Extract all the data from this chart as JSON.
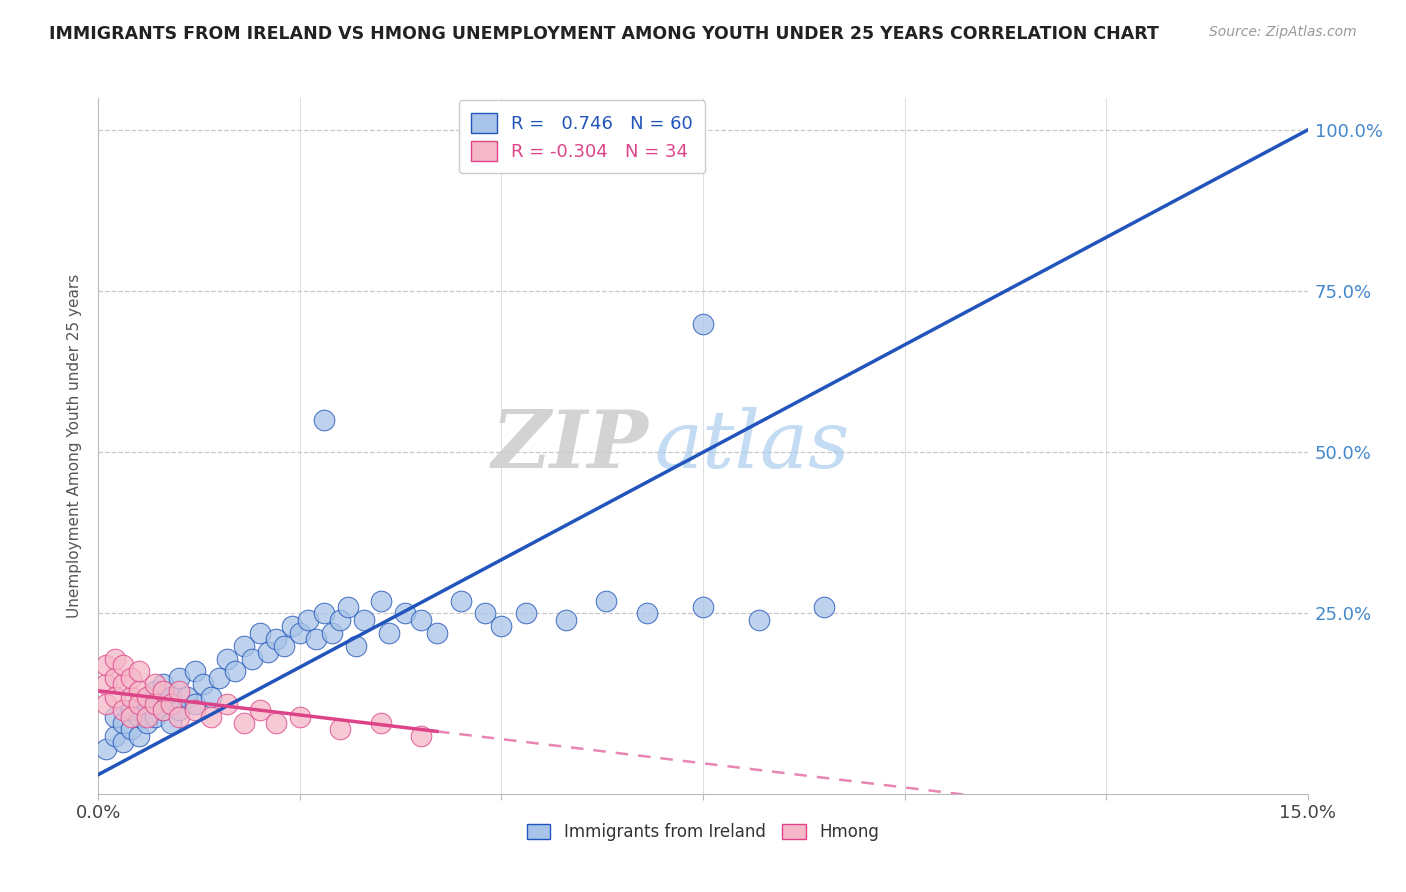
{
  "title": "IMMIGRANTS FROM IRELAND VS HMONG UNEMPLOYMENT AMONG YOUTH UNDER 25 YEARS CORRELATION CHART",
  "source": "Source: ZipAtlas.com",
  "ylabel": "Unemployment Among Youth under 25 years",
  "xlim": [
    0.0,
    0.15
  ],
  "ylim": [
    0.0,
    1.05
  ],
  "ireland_color": "#a8c4e8",
  "hmong_color": "#f5b8c8",
  "ireland_line_color": "#2255bb",
  "hmong_line_color": "#dd4488",
  "grid_color": "#c8c8c8",
  "right_tick_color": "#4488cc",
  "watermark_zip": "ZIP",
  "watermark_atlas": "atlas",
  "ireland_line_slope": 6.67,
  "ireland_line_intercept": 0.0,
  "hmong_line_slope": -1.5,
  "hmong_line_intercept": 0.13,
  "ireland_points": [
    [
      0.001,
      0.04
    ],
    [
      0.002,
      0.06
    ],
    [
      0.002,
      0.09
    ],
    [
      0.003,
      0.05
    ],
    [
      0.003,
      0.08
    ],
    [
      0.004,
      0.07
    ],
    [
      0.004,
      0.1
    ],
    [
      0.005,
      0.06
    ],
    [
      0.005,
      0.09
    ],
    [
      0.006,
      0.08
    ],
    [
      0.006,
      0.11
    ],
    [
      0.007,
      0.09
    ],
    [
      0.007,
      0.13
    ],
    [
      0.008,
      0.1
    ],
    [
      0.008,
      0.14
    ],
    [
      0.009,
      0.08
    ],
    [
      0.009,
      0.12
    ],
    [
      0.01,
      0.1
    ],
    [
      0.01,
      0.15
    ],
    [
      0.011,
      0.12
    ],
    [
      0.012,
      0.11
    ],
    [
      0.012,
      0.16
    ],
    [
      0.013,
      0.14
    ],
    [
      0.014,
      0.12
    ],
    [
      0.015,
      0.15
    ],
    [
      0.016,
      0.18
    ],
    [
      0.017,
      0.16
    ],
    [
      0.018,
      0.2
    ],
    [
      0.019,
      0.18
    ],
    [
      0.02,
      0.22
    ],
    [
      0.021,
      0.19
    ],
    [
      0.022,
      0.21
    ],
    [
      0.023,
      0.2
    ],
    [
      0.024,
      0.23
    ],
    [
      0.025,
      0.22
    ],
    [
      0.026,
      0.24
    ],
    [
      0.027,
      0.21
    ],
    [
      0.028,
      0.25
    ],
    [
      0.029,
      0.22
    ],
    [
      0.03,
      0.24
    ],
    [
      0.031,
      0.26
    ],
    [
      0.032,
      0.2
    ],
    [
      0.033,
      0.24
    ],
    [
      0.035,
      0.27
    ],
    [
      0.036,
      0.22
    ],
    [
      0.038,
      0.25
    ],
    [
      0.04,
      0.24
    ],
    [
      0.042,
      0.22
    ],
    [
      0.045,
      0.27
    ],
    [
      0.048,
      0.25
    ],
    [
      0.05,
      0.23
    ],
    [
      0.053,
      0.25
    ],
    [
      0.058,
      0.24
    ],
    [
      0.063,
      0.27
    ],
    [
      0.068,
      0.25
    ],
    [
      0.075,
      0.26
    ],
    [
      0.082,
      0.24
    ],
    [
      0.09,
      0.26
    ],
    [
      0.028,
      0.55
    ],
    [
      0.075,
      0.7
    ]
  ],
  "hmong_points": [
    [
      0.001,
      0.14
    ],
    [
      0.001,
      0.17
    ],
    [
      0.001,
      0.11
    ],
    [
      0.002,
      0.15
    ],
    [
      0.002,
      0.12
    ],
    [
      0.002,
      0.18
    ],
    [
      0.003,
      0.1
    ],
    [
      0.003,
      0.14
    ],
    [
      0.003,
      0.17
    ],
    [
      0.004,
      0.12
    ],
    [
      0.004,
      0.15
    ],
    [
      0.004,
      0.09
    ],
    [
      0.005,
      0.13
    ],
    [
      0.005,
      0.11
    ],
    [
      0.005,
      0.16
    ],
    [
      0.006,
      0.12
    ],
    [
      0.006,
      0.09
    ],
    [
      0.007,
      0.11
    ],
    [
      0.007,
      0.14
    ],
    [
      0.008,
      0.1
    ],
    [
      0.008,
      0.13
    ],
    [
      0.009,
      0.11
    ],
    [
      0.01,
      0.09
    ],
    [
      0.01,
      0.13
    ],
    [
      0.012,
      0.1
    ],
    [
      0.014,
      0.09
    ],
    [
      0.016,
      0.11
    ],
    [
      0.018,
      0.08
    ],
    [
      0.02,
      0.1
    ],
    [
      0.022,
      0.08
    ],
    [
      0.025,
      0.09
    ],
    [
      0.03,
      0.07
    ],
    [
      0.035,
      0.08
    ],
    [
      0.04,
      0.06
    ]
  ]
}
